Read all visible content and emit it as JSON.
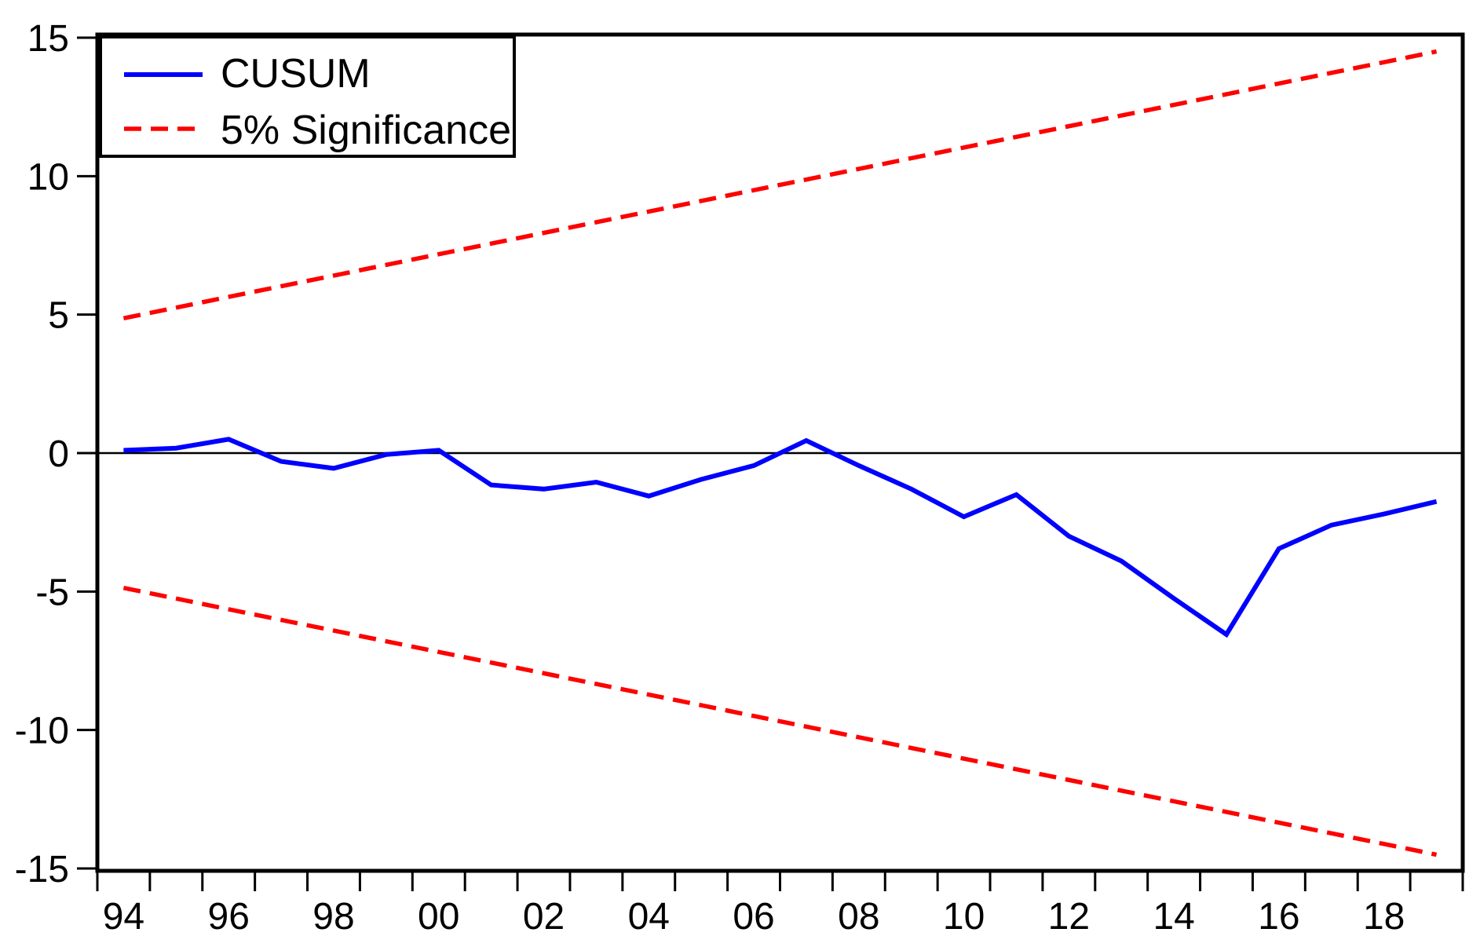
{
  "chart_data": {
    "type": "line",
    "title": "",
    "xlabel": "",
    "ylabel": "",
    "x": [
      1994,
      1995,
      1996,
      1997,
      1998,
      1999,
      2000,
      2001,
      2002,
      2003,
      2004,
      2005,
      2006,
      2007,
      2008,
      2009,
      2010,
      2011,
      2012,
      2013,
      2014,
      2015,
      2016,
      2017,
      2018,
      2019
    ],
    "series": [
      {
        "name": "CUSUM",
        "color": "#0000ff",
        "line_style": "solid",
        "values": [
          0.1,
          0.18,
          0.5,
          -0.3,
          -0.55,
          -0.05,
          0.1,
          -1.15,
          -1.3,
          -1.05,
          -1.55,
          -0.95,
          -0.45,
          0.45,
          -0.45,
          -1.3,
          -2.3,
          -1.5,
          -3.0,
          -3.9,
          -5.25,
          -6.55,
          -3.45,
          -2.6,
          -2.2,
          -1.75
        ]
      },
      {
        "name": "5% Significance (upper bound)",
        "color": "#ff0000",
        "line_style": "dashed",
        "x": [
          1994,
          2019
        ],
        "values": [
          4.87,
          14.5
        ]
      },
      {
        "name": "5% Significance (lower bound)",
        "color": "#ff0000",
        "line_style": "dashed",
        "x": [
          1994,
          2019
        ],
        "values": [
          -4.87,
          -14.5
        ]
      }
    ],
    "ylim": [
      -15,
      15
    ],
    "yticks": [
      15,
      10,
      5,
      0,
      -5,
      -10,
      -15
    ],
    "ytick_labels": [
      "15",
      "10",
      "5",
      "0",
      "-5",
      "-10",
      "-15"
    ],
    "xtick_label_years": [
      1994,
      1996,
      1998,
      2000,
      2002,
      2004,
      2006,
      2008,
      2010,
      2012,
      2014,
      2016,
      2018
    ],
    "xtick_labels": [
      "94",
      "96",
      "98",
      "00",
      "02",
      "04",
      "06",
      "08",
      "10",
      "12",
      "14",
      "16",
      "18"
    ],
    "grid": false,
    "zero_line": true,
    "legend": {
      "position": "top-left",
      "entries": [
        {
          "label": "CUSUM",
          "color": "#0000ff",
          "line_style": "solid"
        },
        {
          "label": "5% Significance",
          "color": "#ff0000",
          "line_style": "dashed"
        }
      ]
    },
    "colors": {
      "axis": "#000000",
      "background": "#ffffff"
    }
  }
}
